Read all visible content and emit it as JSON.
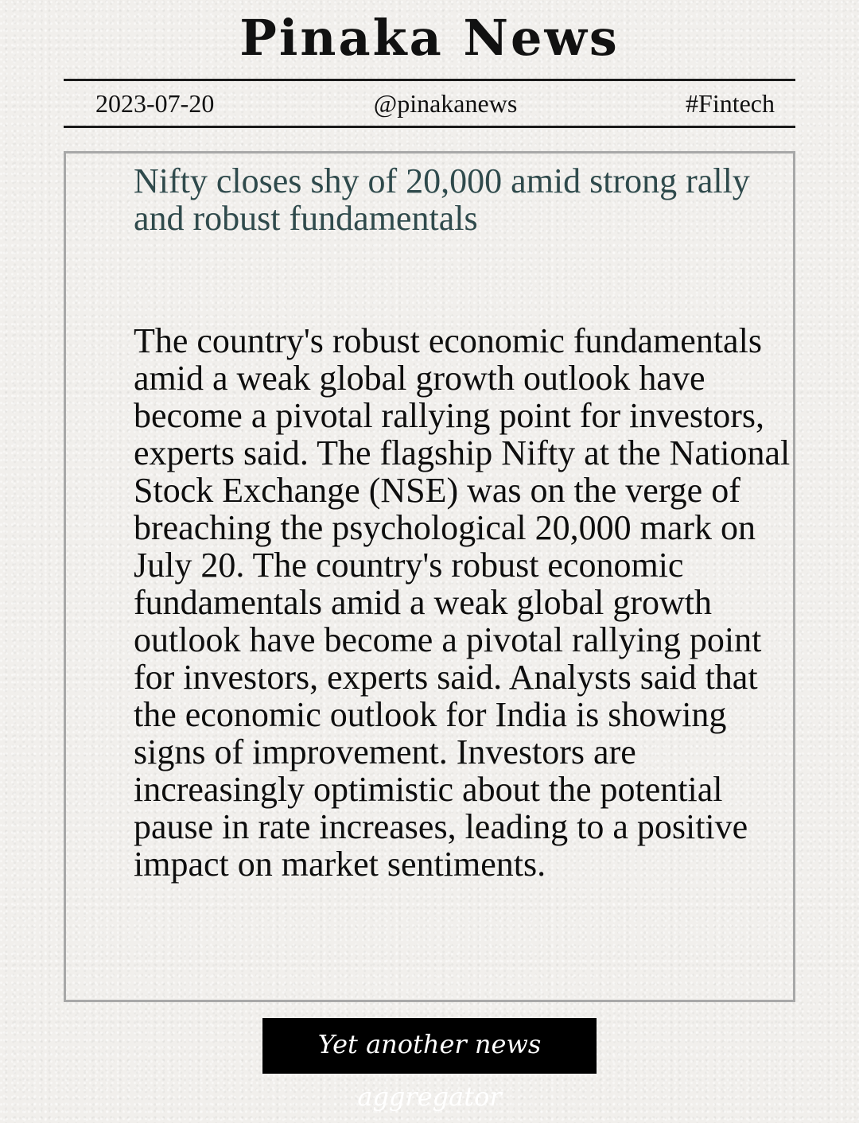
{
  "masthead": {
    "title": "Pinaka News"
  },
  "meta": {
    "date": "2023-07-20",
    "handle": "@pinakanews",
    "tag": "#Fintech"
  },
  "article": {
    "headline": "Nifty closes shy of 20,000 amid strong rally and robust fundamentals",
    "body": "The country's robust economic fundamentals amid a weak global growth outlook have become a pivotal rallying point for investors, experts said. The flagship Nifty at the National Stock Exchange (NSE) was on the verge of breaching the psychological 20,000 mark on July 20. The country's robust economic fundamentals amid a weak global growth outlook have become a pivotal rallying point for investors, experts said. Analysts said that the economic outlook for India is showing signs of improvement. Investors are increasingly optimistic about the potential pause in rate increases, leading to a positive impact on market sentiments."
  },
  "footer": {
    "tagline": "Yet another news aggregator"
  },
  "colors": {
    "background": "#f1efec",
    "headline": "#2f4a4c",
    "frame": "#a8a8a8",
    "tagline_bg": "#000000"
  }
}
